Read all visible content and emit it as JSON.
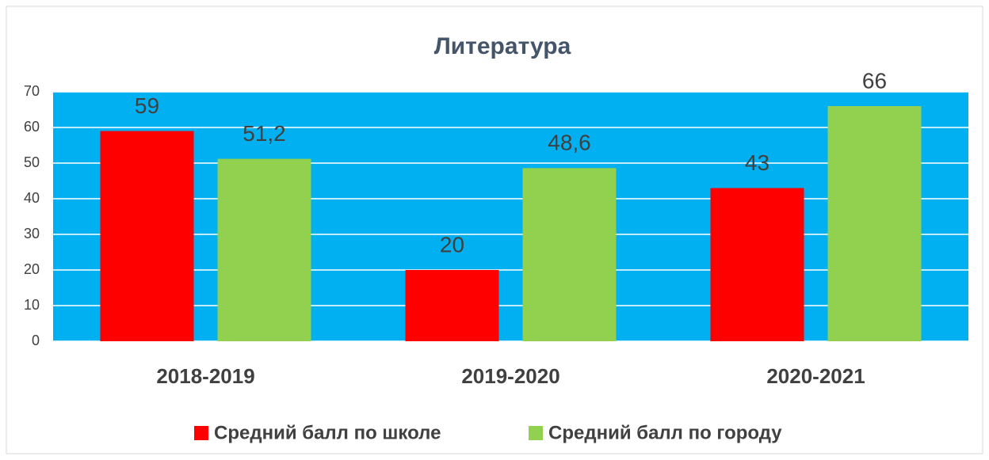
{
  "chart_data": {
    "type": "bar",
    "title": "Литература",
    "categories": [
      "2018-2019",
      "2019-2020",
      "2020-2021"
    ],
    "series": [
      {
        "name": "Средний балл по школе",
        "color": "#ff0000",
        "values": [
          59,
          20,
          43
        ],
        "value_labels": [
          "59",
          "20",
          "43"
        ]
      },
      {
        "name": "Средний балл по городу",
        "color": "#92d050",
        "values": [
          51.2,
          48.6,
          66
        ],
        "value_labels": [
          "51,2",
          "48,6",
          "66"
        ]
      }
    ],
    "ylim": [
      0,
      70
    ],
    "yticks": [
      0,
      10,
      20,
      30,
      40,
      50,
      60,
      70
    ],
    "grid": true,
    "plot_background": "#00b0f0",
    "legend": "bottom"
  }
}
